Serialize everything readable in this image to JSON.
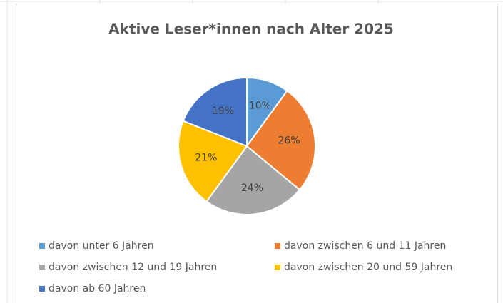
{
  "chart_data": {
    "type": "pie",
    "title": "Aktive Leser*innen nach Alter 2025",
    "categories": [
      "davon unter 6 Jahren",
      "davon zwischen 6 und 11 Jahren",
      "davon zwischen 12 und 19 Jahren",
      "davon zwischen 20 und 59 Jahren",
      "davon ab 60 Jahren"
    ],
    "values": [
      10,
      26,
      24,
      21,
      19
    ],
    "value_labels": [
      "10%",
      "26%",
      "24%",
      "21%",
      "19%"
    ],
    "colors": [
      "#5b9bd5",
      "#ed7d31",
      "#a5a5a5",
      "#ffc000",
      "#4472c4"
    ],
    "legend": "bottom"
  }
}
